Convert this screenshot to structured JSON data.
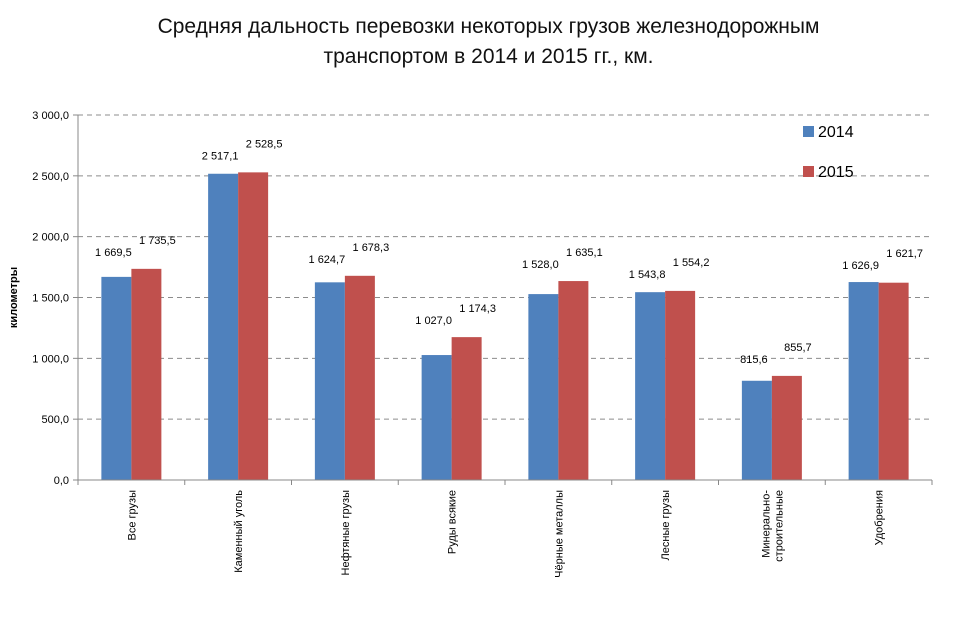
{
  "chart_data": {
    "type": "bar",
    "title": [
      "Средняя дальность перевозки некоторых грузов железнодорожным",
      "транспортом в 2014 и 2015 гг., км."
    ],
    "ylabel": "километры",
    "xlabel": "",
    "ylim": [
      0,
      3000
    ],
    "yticks": [
      0,
      500,
      1000,
      1500,
      2000,
      2500,
      3000
    ],
    "ytick_labels": [
      "0,0",
      "500,0",
      "1 000,0",
      "1 500,0",
      "2 000,0",
      "2 500,0",
      "3 000,0"
    ],
    "grid": true,
    "legend_position": "top-right",
    "categories": [
      [
        "Все грузы"
      ],
      [
        "Каменный уголь"
      ],
      [
        "Нефтяные грузы"
      ],
      [
        "Руды всякие"
      ],
      [
        "Чёрные металлы"
      ],
      [
        "Лесные грузы"
      ],
      [
        "Минерально-",
        "строительные"
      ],
      [
        "Удобрения"
      ]
    ],
    "series": [
      {
        "name": "2014",
        "color": "#4F81BD",
        "values": [
          1669.5,
          2517.1,
          1624.7,
          1027.0,
          1528.0,
          1543.8,
          815.6,
          1626.9
        ],
        "labels": [
          "1 669,5",
          "2 517,1",
          "1 624,7",
          "1 027,0",
          "1 528,0",
          "1 543,8",
          "815,6",
          "1 626,9"
        ]
      },
      {
        "name": "2015",
        "color": "#C0504D",
        "values": [
          1735.5,
          2528.5,
          1678.3,
          1174.3,
          1635.1,
          1554.2,
          855.7,
          1621.7
        ],
        "labels": [
          "1 735,5",
          "2 528,5",
          "1 678,3",
          "1 174,3",
          "1 635,1",
          "1 554,2",
          "855,7",
          "1 621,7"
        ]
      }
    ]
  }
}
